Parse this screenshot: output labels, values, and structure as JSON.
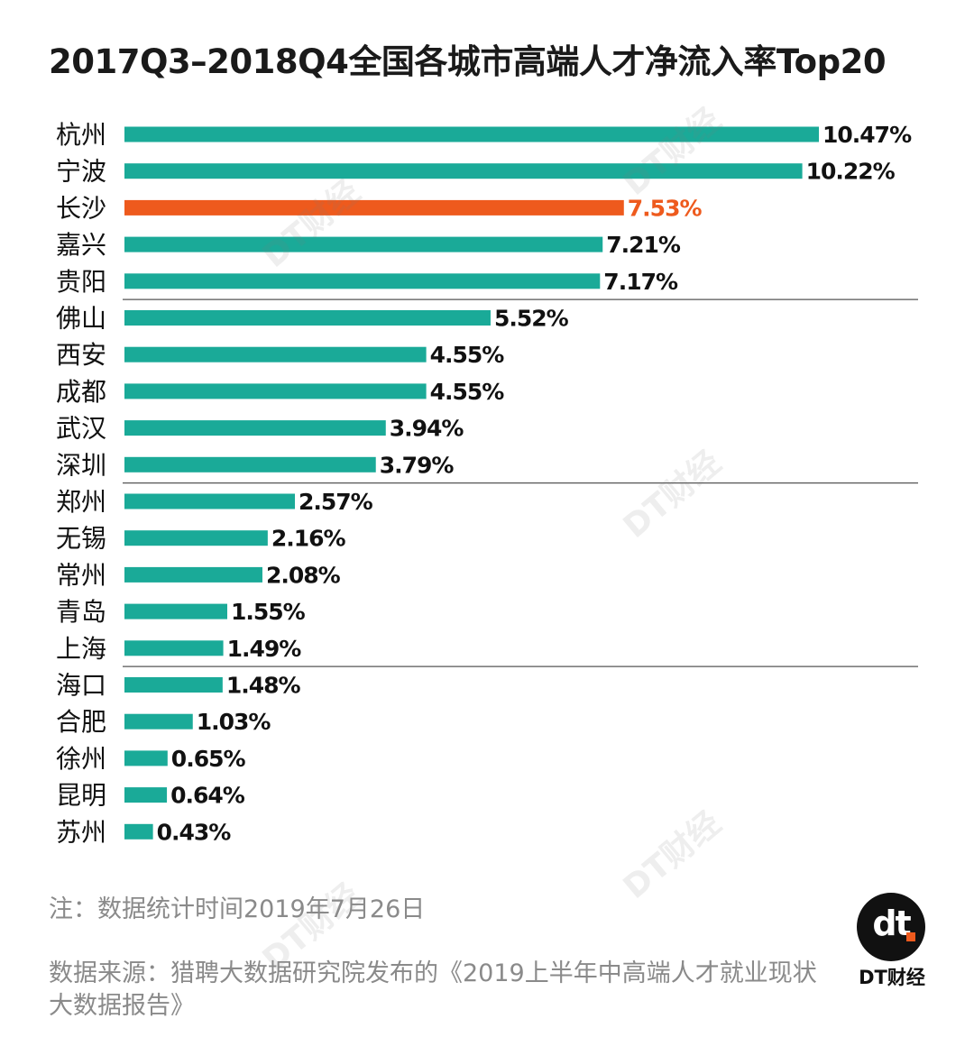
{
  "title": "2017Q3–2018Q4全国各城市高端人才净流入率Top20",
  "colors": {
    "bar": "#1aaa98",
    "highlight": "#ee5a1d",
    "label": "#111111",
    "separator": "#555555"
  },
  "chart_data": {
    "type": "bar",
    "orientation": "horizontal",
    "title": "2017Q3–2018Q4全国各城市高端人才净流入率Top20",
    "xlabel": "",
    "ylabel": "",
    "unit": "%",
    "xlim": [
      0,
      10.47
    ],
    "grid": false,
    "highlight_category": "长沙",
    "separators_after_rank": [
      5,
      10,
      15
    ],
    "categories": [
      "杭州",
      "宁波",
      "长沙",
      "嘉兴",
      "贵阳",
      "佛山",
      "西安",
      "成都",
      "武汉",
      "深圳",
      "郑州",
      "无锡",
      "常州",
      "青岛",
      "上海",
      "海口",
      "合肥",
      "徐州",
      "昆明",
      "苏州"
    ],
    "values": [
      10.47,
      10.22,
      7.53,
      7.21,
      7.17,
      5.52,
      4.55,
      4.55,
      3.94,
      3.79,
      2.57,
      2.16,
      2.08,
      1.55,
      1.49,
      1.48,
      1.03,
      0.65,
      0.64,
      0.43
    ],
    "value_labels": [
      "10.47%",
      "10.22%",
      "7.53%",
      "7.21%",
      "7.17%",
      "5.52%",
      "4.55%",
      "4.55%",
      "3.94%",
      "3.79%",
      "2.57%",
      "2.16%",
      "2.08%",
      "1.55%",
      "1.49%",
      "1.48%",
      "1.03%",
      "0.65%",
      "0.64%",
      "0.43%"
    ]
  },
  "footer": {
    "note": "注：数据统计时间2019年7月26日",
    "source": "数据来源：猎聘大数据研究院发布的《2019上半年中高端人才就业现状大数据报告》",
    "logo_mark": "dt",
    "logo_text": "DT财经"
  }
}
